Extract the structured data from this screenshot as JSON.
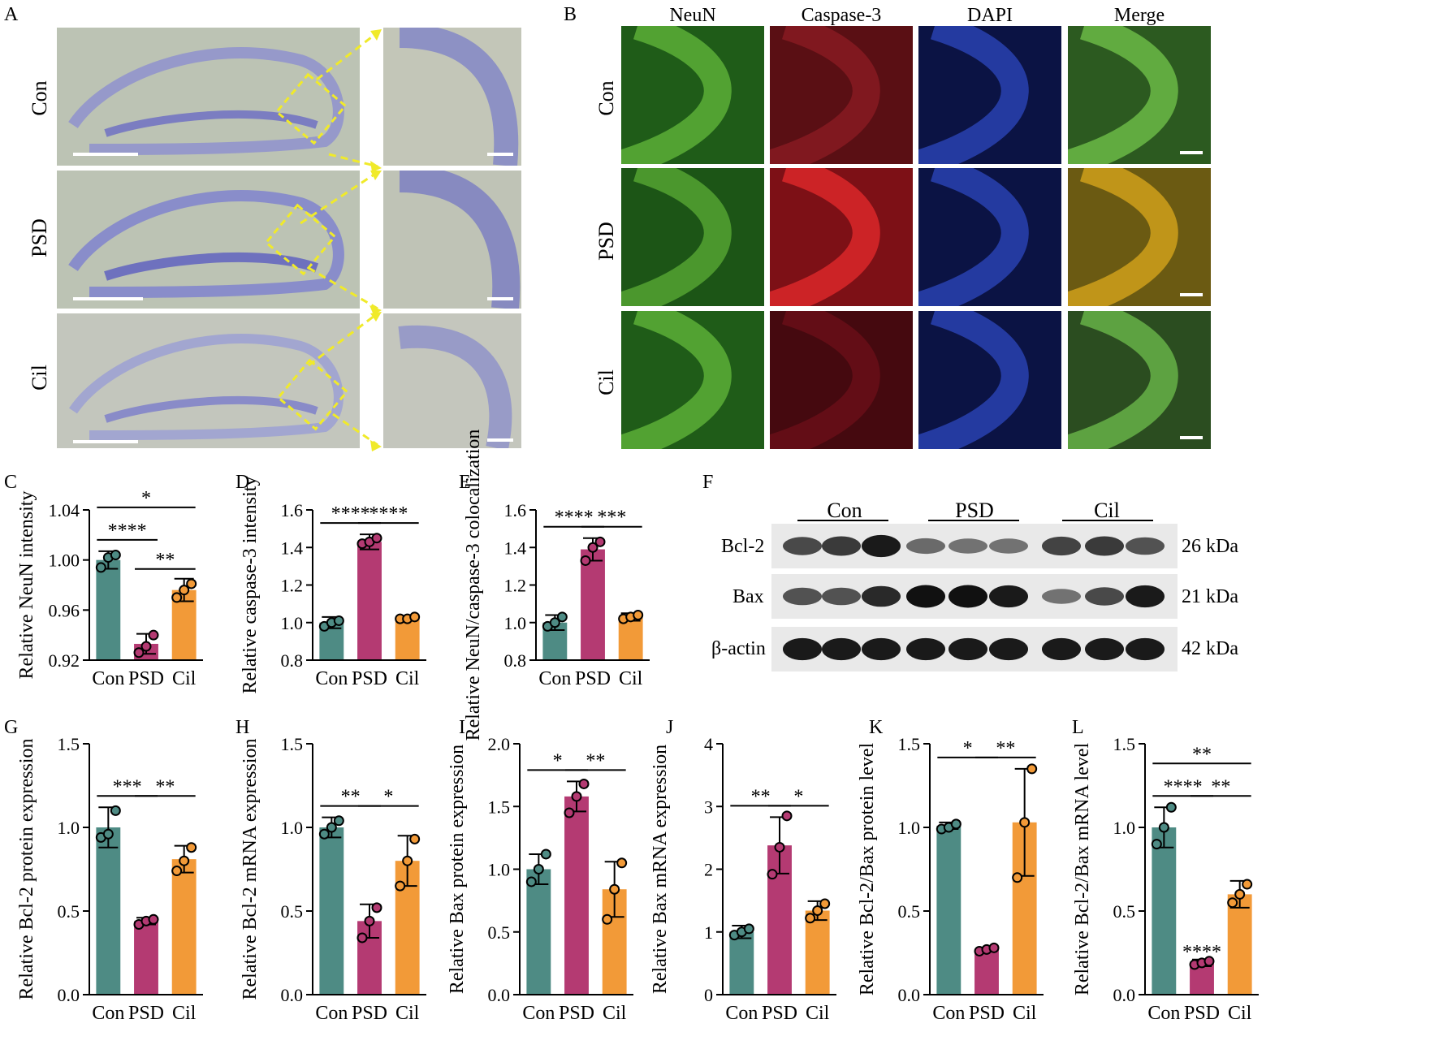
{
  "panel_letters": [
    "A",
    "B",
    "C",
    "D",
    "E",
    "F",
    "G",
    "H",
    "I",
    "J",
    "K",
    "L"
  ],
  "groups": [
    "Con",
    "PSD",
    "Cil"
  ],
  "colors": {
    "Con": "#4e8b84",
    "PSD": "#b43a72",
    "Cil": "#f29a38"
  },
  "panel_b": {
    "columns": [
      "NeuN",
      "Caspase-3",
      "DAPI",
      "Merge"
    ]
  },
  "panel_f": {
    "bands": [
      "Bcl-2",
      "Bax",
      "β-actin"
    ],
    "sizes": [
      "26 kDa",
      "21 kDa",
      "42 kDa"
    ],
    "band_intensity": {
      "Bcl-2": [
        0.65,
        0.75,
        0.95,
        0.45,
        0.4,
        0.4,
        0.7,
        0.75,
        0.6
      ],
      "Bax": [
        0.6,
        0.6,
        0.85,
        1.0,
        1.0,
        0.95,
        0.4,
        0.65,
        0.95
      ],
      "β-actin": [
        0.95,
        0.95,
        0.95,
        0.95,
        0.95,
        0.95,
        0.95,
        0.95,
        0.95
      ]
    }
  },
  "chart_data": [
    {
      "panel": "C",
      "type": "bar",
      "categories": [
        "Con",
        "PSD",
        "Cil"
      ],
      "ylabel": "Relative NeuN intensity",
      "ylim": [
        0.92,
        1.04
      ],
      "yticks": [
        "0.92",
        "0.96",
        "1.00",
        "1.04"
      ],
      "values": [
        1.0,
        0.933,
        0.976
      ],
      "errors": [
        0.007,
        0.008,
        0.009
      ],
      "points": [
        [
          0.994,
          1.002,
          1.004
        ],
        [
          0.926,
          0.931,
          0.94
        ],
        [
          0.97,
          0.976,
          0.981
        ]
      ],
      "significance": [
        {
          "from": 0,
          "to": 1,
          "label": "****"
        },
        {
          "from": 1,
          "to": 2,
          "label": "**"
        },
        {
          "from": 0,
          "to": 2,
          "label": "*"
        }
      ]
    },
    {
      "panel": "D",
      "type": "bar",
      "categories": [
        "Con",
        "PSD",
        "Cil"
      ],
      "ylabel": "Relative caspase-3 intensity",
      "ylim": [
        0.8,
        1.6
      ],
      "yticks": [
        "0.8",
        "1.0",
        "1.2",
        "1.4",
        "1.6"
      ],
      "values": [
        1.0,
        1.43,
        1.02
      ],
      "errors": [
        0.03,
        0.04,
        0.01
      ],
      "points": [
        [
          0.98,
          1.0,
          1.01
        ],
        [
          1.42,
          1.43,
          1.45
        ],
        [
          1.02,
          1.02,
          1.03
        ]
      ],
      "significance": [
        {
          "from": 0,
          "to": 1,
          "label": "****"
        },
        {
          "from": 1,
          "to": 2,
          "label": "****"
        }
      ]
    },
    {
      "panel": "E",
      "type": "bar",
      "categories": [
        "Con",
        "PSD",
        "Cil"
      ],
      "ylabel": "Relative NeuN/caspase-3 colocalization",
      "ylim": [
        0.8,
        1.6
      ],
      "yticks": [
        "0.8",
        "1.0",
        "1.2",
        "1.4",
        "1.6"
      ],
      "values": [
        1.0,
        1.39,
        1.03
      ],
      "errors": [
        0.04,
        0.06,
        0.02
      ],
      "points": [
        [
          0.98,
          1.0,
          1.03
        ],
        [
          1.33,
          1.4,
          1.43
        ],
        [
          1.02,
          1.03,
          1.04
        ]
      ],
      "significance": [
        {
          "from": 0,
          "to": 1,
          "label": "****"
        },
        {
          "from": 1,
          "to": 2,
          "label": "***"
        }
      ]
    },
    {
      "panel": "G",
      "type": "bar",
      "categories": [
        "Con",
        "PSD",
        "Cil"
      ],
      "ylabel": "Relative Bcl-2 protein expression",
      "ylim": [
        0,
        1.5
      ],
      "yticks": [
        "0.0",
        "0.5",
        "1.0",
        "1.5"
      ],
      "values": [
        1.0,
        0.44,
        0.81
      ],
      "errors": [
        0.12,
        0.02,
        0.08
      ],
      "points": [
        [
          0.94,
          0.96,
          1.1
        ],
        [
          0.42,
          0.44,
          0.45
        ],
        [
          0.74,
          0.8,
          0.88
        ]
      ],
      "significance": [
        {
          "from": 0,
          "to": 1,
          "label": "***"
        },
        {
          "from": 1,
          "to": 2,
          "label": "**"
        }
      ]
    },
    {
      "panel": "H",
      "type": "bar",
      "categories": [
        "Con",
        "PSD",
        "Cil"
      ],
      "ylabel": "Relative Bcl-2 mRNA expression",
      "ylim": [
        0,
        1.5
      ],
      "yticks": [
        "0.0",
        "0.5",
        "1.0",
        "1.5"
      ],
      "values": [
        1.0,
        0.44,
        0.8
      ],
      "errors": [
        0.06,
        0.1,
        0.15
      ],
      "points": [
        [
          0.96,
          1.0,
          1.04
        ],
        [
          0.34,
          0.44,
          0.52
        ],
        [
          0.65,
          0.8,
          0.93
        ]
      ],
      "significance": [
        {
          "from": 0,
          "to": 1,
          "label": "**"
        },
        {
          "from": 1,
          "to": 2,
          "label": "*"
        }
      ]
    },
    {
      "panel": "I",
      "type": "bar",
      "categories": [
        "Con",
        "PSD",
        "Cil"
      ],
      "ylabel": "Relative Bax protein expression",
      "ylim": [
        0,
        2.0
      ],
      "yticks": [
        "0.0",
        "0.5",
        "1.0",
        "1.5",
        "2.0"
      ],
      "values": [
        1.0,
        1.58,
        0.84
      ],
      "errors": [
        0.12,
        0.12,
        0.22
      ],
      "points": [
        [
          0.9,
          1.0,
          1.12
        ],
        [
          1.45,
          1.58,
          1.68
        ],
        [
          0.6,
          0.84,
          1.05
        ]
      ],
      "significance": [
        {
          "from": 0,
          "to": 1,
          "label": "*"
        },
        {
          "from": 1,
          "to": 2,
          "label": "**"
        }
      ]
    },
    {
      "panel": "J",
      "type": "bar",
      "categories": [
        "Con",
        "PSD",
        "Cil"
      ],
      "ylabel": "Relative Bax mRNA expression",
      "ylim": [
        0,
        4
      ],
      "yticks": [
        "0",
        "1",
        "2",
        "3",
        "4"
      ],
      "values": [
        1.0,
        2.38,
        1.34
      ],
      "errors": [
        0.1,
        0.45,
        0.15
      ],
      "points": [
        [
          0.95,
          1.0,
          1.05
        ],
        [
          1.92,
          2.35,
          2.85
        ],
        [
          1.22,
          1.34,
          1.45
        ]
      ],
      "significance": [
        {
          "from": 0,
          "to": 1,
          "label": "**"
        },
        {
          "from": 1,
          "to": 2,
          "label": "*"
        }
      ]
    },
    {
      "panel": "K",
      "type": "bar",
      "categories": [
        "Con",
        "PSD",
        "Cil"
      ],
      "ylabel": "Relative Bcl-2/Bax protein level",
      "ylim": [
        0,
        1.5
      ],
      "yticks": [
        "0.0",
        "0.5",
        "1.0",
        "1.5"
      ],
      "values": [
        1.01,
        0.27,
        1.03
      ],
      "errors": [
        0.02,
        0.01,
        0.32
      ],
      "points": [
        [
          0.99,
          1.0,
          1.02
        ],
        [
          0.26,
          0.27,
          0.28
        ],
        [
          0.7,
          1.03,
          1.35
        ]
      ],
      "significance": [
        {
          "from": 0,
          "to": 1,
          "label": "*"
        },
        {
          "from": 1,
          "to": 2,
          "label": "**"
        }
      ]
    },
    {
      "panel": "L",
      "type": "bar",
      "categories": [
        "Con",
        "PSD",
        "Cil"
      ],
      "ylabel": "Relative Bcl-2/Bax mRNA level",
      "ylim": [
        0,
        1.5
      ],
      "yticks": [
        "0.0",
        "0.5",
        "1.0",
        "1.5"
      ],
      "values": [
        1.0,
        0.19,
        0.6
      ],
      "errors": [
        0.12,
        0.02,
        0.08
      ],
      "points": [
        [
          0.9,
          1.0,
          1.12
        ],
        [
          0.18,
          0.19,
          0.2
        ],
        [
          0.55,
          0.6,
          0.66
        ]
      ],
      "extra_labels": [
        {
          "bar": 1,
          "label": "****"
        }
      ],
      "significance": [
        {
          "from": 0,
          "to": 1,
          "label": "****"
        },
        {
          "from": 1,
          "to": 2,
          "label": "**"
        },
        {
          "from": 0,
          "to": 2,
          "label": "**"
        }
      ]
    }
  ]
}
